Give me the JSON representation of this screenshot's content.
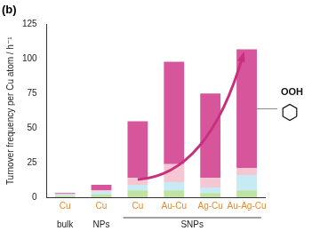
{
  "chart_data": {
    "type": "bar",
    "title": "(b)",
    "y_label": "Turnover frequency per Cu atom / h⁻¹",
    "categories": [
      "Cu",
      "Cu",
      "Cu",
      "Au-Cu",
      "Ag-Cu",
      "Au-Ag-Cu"
    ],
    "groups": [
      {
        "label": "bulk",
        "from": 0,
        "to": 0
      },
      {
        "label": "NPs",
        "from": 1,
        "to": 1
      },
      {
        "label": "SNPs",
        "from": 2,
        "to": 5
      }
    ],
    "series": [
      {
        "color": "#bfe3a3",
        "values": [
          1,
          2,
          5,
          5,
          3,
          5
        ]
      },
      {
        "color": "#c6ebf5",
        "values": [
          1,
          2,
          4,
          6,
          4,
          11
        ]
      },
      {
        "color": "#f6c6d3",
        "values": [
          0.5,
          1,
          5,
          13,
          7,
          5
        ]
      },
      {
        "color": "#d6559b",
        "values": [
          0.5,
          4,
          41,
          74,
          61,
          86
        ]
      }
    ],
    "annotations": [
      {
        "text": "OOH",
        "series": 3
      }
    ],
    "ylim": [
      0,
      125
    ],
    "yticks": [
      0,
      25,
      50,
      75,
      100,
      125
    ],
    "stacked": true,
    "grid": false
  }
}
